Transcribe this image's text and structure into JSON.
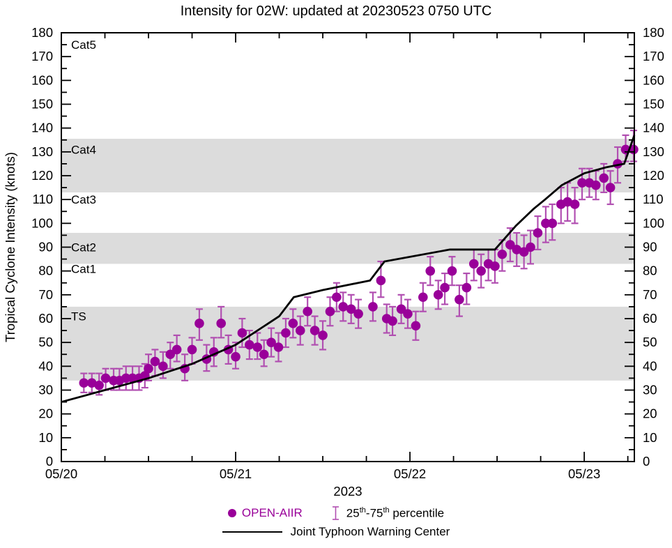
{
  "title": "Intensity for 02W: updated at 20230523 0750 UTC",
  "colors": {
    "dot": "#990099",
    "errorbar": "#b14fb1",
    "jtwc_line": "#000000",
    "band": "#dcdcdc",
    "axis": "#000000",
    "open_aiir_text": "#990099"
  },
  "legend": {
    "open_aiir": "OPEN-AIIR",
    "percentile": {
      "p1": "25",
      "sup1": "th",
      "p2": "-75",
      "sup2": "th",
      "p3": " percentile"
    },
    "jtwc": "Joint Typhoon Warning Center"
  },
  "chart_data": {
    "type": "scatter",
    "title": "Intensity for 02W: updated at 20230523 0750 UTC",
    "x_axis": {
      "label": "2023",
      "tick_labels": [
        "05/20",
        "05/21",
        "05/22",
        "05/23"
      ],
      "tick_hours": [
        0,
        24,
        48,
        72
      ],
      "minor_step_hours": 6,
      "range_hours": [
        0,
        78.9
      ]
    },
    "y_axis": {
      "label": "Tropical Cyclone Intensity (knots)",
      "range": [
        0,
        180
      ],
      "major_step": 10,
      "minor_step": 5
    },
    "bands_knots": [
      [
        34,
        65
      ],
      [
        83,
        96
      ],
      [
        113,
        135.5
      ]
    ],
    "category_labels": [
      {
        "text": "Cat5",
        "knots": 175
      },
      {
        "text": "Cat4",
        "knots": 131
      },
      {
        "text": "Cat3",
        "knots": 110
      },
      {
        "text": "Cat2",
        "knots": 90
      },
      {
        "text": "Cat1",
        "knots": 81
      },
      {
        "text": "TS",
        "knots": 61
      }
    ],
    "series": [
      {
        "name": "OPEN-AIIR",
        "type": "scatter_errorbar",
        "units": "knots",
        "point_format": [
          "hours_after_0520_0000Z",
          "intensity_kt",
          "err_below_kt",
          "err_above_kt"
        ],
        "points": [
          [
            3.1,
            33,
            4,
            4
          ],
          [
            4.2,
            33,
            4,
            4
          ],
          [
            5.2,
            32,
            4,
            5
          ],
          [
            6.1,
            35,
            5,
            4
          ],
          [
            7.2,
            34,
            4,
            5
          ],
          [
            8.0,
            34,
            4,
            5
          ],
          [
            8.9,
            35,
            5,
            5
          ],
          [
            9.8,
            35,
            5,
            5
          ],
          [
            10.7,
            35,
            5,
            5
          ],
          [
            11.5,
            36,
            5,
            5
          ],
          [
            12.0,
            39,
            5,
            6
          ],
          [
            12.9,
            42,
            6,
            5
          ],
          [
            14.0,
            40,
            5,
            6
          ],
          [
            15.0,
            45,
            6,
            5
          ],
          [
            15.9,
            47,
            5,
            6
          ],
          [
            17.0,
            39,
            5,
            6
          ],
          [
            18.0,
            47,
            6,
            5
          ],
          [
            19.0,
            58,
            7,
            6
          ],
          [
            20.0,
            43,
            5,
            6
          ],
          [
            21.0,
            46,
            6,
            6
          ],
          [
            22.0,
            58,
            6,
            7
          ],
          [
            23.0,
            47,
            6,
            6
          ],
          [
            24.0,
            44,
            5,
            6
          ],
          [
            24.9,
            54,
            6,
            6
          ],
          [
            25.9,
            49,
            6,
            6
          ],
          [
            27.0,
            48,
            5,
            6
          ],
          [
            27.9,
            45,
            5,
            6
          ],
          [
            28.9,
            50,
            6,
            6
          ],
          [
            29.9,
            48,
            6,
            6
          ],
          [
            30.9,
            54,
            6,
            6
          ],
          [
            31.9,
            58,
            6,
            6
          ],
          [
            32.9,
            55,
            6,
            6
          ],
          [
            33.9,
            63,
            6,
            6
          ],
          [
            34.9,
            55,
            6,
            6
          ],
          [
            36.0,
            53,
            6,
            6
          ],
          [
            37.0,
            63,
            6,
            6
          ],
          [
            37.9,
            69,
            6,
            6
          ],
          [
            38.8,
            65,
            6,
            6
          ],
          [
            39.9,
            64,
            6,
            6
          ],
          [
            40.9,
            62,
            6,
            6
          ],
          [
            42.9,
            65,
            6,
            6
          ],
          [
            44.0,
            76,
            7,
            8
          ],
          [
            44.8,
            60,
            6,
            6
          ],
          [
            45.6,
            59,
            6,
            6
          ],
          [
            46.8,
            64,
            6,
            6
          ],
          [
            47.7,
            62,
            6,
            6
          ],
          [
            48.8,
            57,
            6,
            6
          ],
          [
            49.8,
            69,
            6,
            6
          ],
          [
            50.8,
            80,
            6,
            6
          ],
          [
            51.9,
            70,
            6,
            6
          ],
          [
            52.8,
            73,
            7,
            6
          ],
          [
            53.8,
            80,
            6,
            6
          ],
          [
            54.8,
            68,
            7,
            6
          ],
          [
            55.8,
            73,
            7,
            6
          ],
          [
            56.8,
            83,
            7,
            6
          ],
          [
            57.8,
            80,
            7,
            7
          ],
          [
            58.8,
            83,
            7,
            6
          ],
          [
            59.7,
            82,
            7,
            7
          ],
          [
            60.7,
            87,
            7,
            6
          ],
          [
            61.8,
            91,
            7,
            7
          ],
          [
            62.7,
            89,
            7,
            7
          ],
          [
            63.7,
            88,
            7,
            7
          ],
          [
            64.6,
            90,
            7,
            7
          ],
          [
            65.6,
            96,
            7,
            7
          ],
          [
            66.7,
            100,
            8,
            7
          ],
          [
            67.6,
            100,
            7,
            8
          ],
          [
            68.8,
            108,
            8,
            7
          ],
          [
            69.7,
            109,
            8,
            8
          ],
          [
            70.7,
            108,
            8,
            7
          ],
          [
            71.7,
            117,
            7,
            6
          ],
          [
            72.7,
            117,
            6,
            6
          ],
          [
            73.6,
            116,
            6,
            6
          ],
          [
            74.7,
            119,
            6,
            6
          ],
          [
            75.6,
            115,
            7,
            7
          ],
          [
            76.6,
            125,
            8,
            7
          ],
          [
            77.7,
            131,
            5,
            6
          ],
          [
            78.8,
            131,
            5,
            8
          ]
        ]
      },
      {
        "name": "Joint Typhoon Warning Center",
        "type": "line",
        "units": "knots",
        "point_format": [
          "hours_after_0520_0000Z",
          "intensity_kt"
        ],
        "points": [
          [
            0,
            25
          ],
          [
            6,
            30
          ],
          [
            12,
            35
          ],
          [
            18,
            41
          ],
          [
            24,
            49
          ],
          [
            30,
            61
          ],
          [
            32,
            69
          ],
          [
            36,
            72
          ],
          [
            42.5,
            76
          ],
          [
            44.5,
            84
          ],
          [
            53.5,
            89
          ],
          [
            59.7,
            89
          ],
          [
            62.6,
            99
          ],
          [
            65,
            106
          ],
          [
            66.6,
            110
          ],
          [
            68.9,
            116
          ],
          [
            72,
            121
          ],
          [
            75,
            123.5
          ],
          [
            77.5,
            125
          ],
          [
            78.9,
            137
          ]
        ]
      }
    ]
  }
}
